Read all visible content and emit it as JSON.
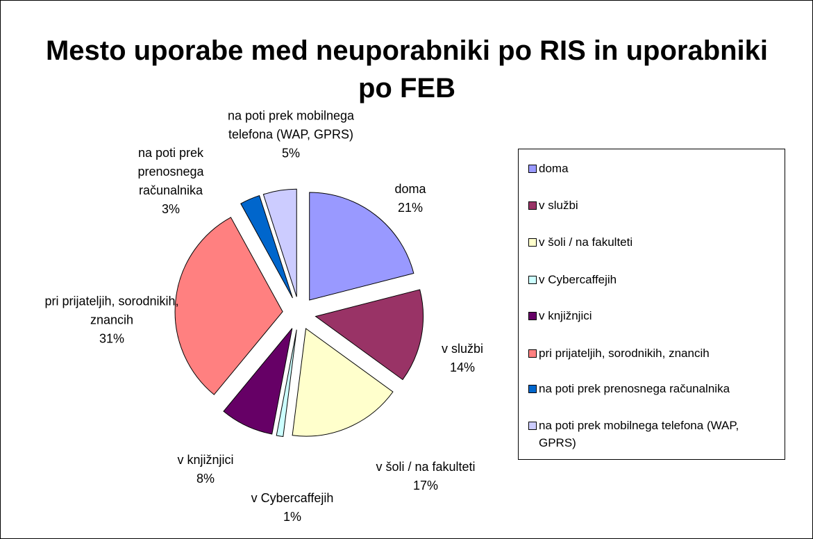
{
  "chart_data": {
    "type": "pie",
    "title": "Mesto uporabe med neuporabniki po RIS in uporabniki po FEB",
    "categories": [
      "doma",
      "v službi",
      "v šoli / na fakulteti",
      "v Cybercaffejih",
      "v knjižnjici",
      "pri prijateljih, sorodnikih, znancih",
      "na poti prek prenosnega računalnika",
      "na poti prek mobilnega telefona (WAP, GPRS)"
    ],
    "values": [
      21,
      14,
      17,
      1,
      8,
      31,
      3,
      5
    ],
    "value_labels": [
      "21%",
      "14%",
      "17%",
      "1%",
      "8%",
      "31%",
      "3%",
      "5%"
    ],
    "colors": [
      "#9999ff",
      "#993366",
      "#ffffcc",
      "#ccffff",
      "#660066",
      "#ff8080",
      "#0066cc",
      "#ccccff"
    ],
    "legend": "right"
  }
}
